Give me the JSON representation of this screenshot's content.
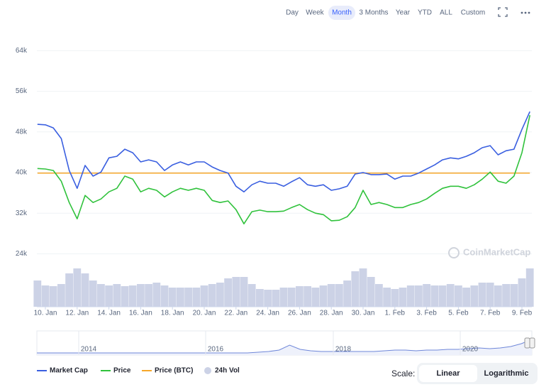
{
  "toolbar": {
    "ranges": [
      "Day",
      "Week",
      "Month",
      "3 Months",
      "Year",
      "YTD",
      "ALL",
      "Custom"
    ],
    "selected": 2
  },
  "chart_data": {
    "type": "line",
    "categories": [
      null,
      "10. Jan",
      null,
      null,
      null,
      "12. Jan",
      null,
      null,
      null,
      "14. Jan",
      null,
      null,
      null,
      "16. Jan",
      null,
      null,
      null,
      "18. Jan",
      null,
      null,
      null,
      "20. Jan",
      null,
      null,
      null,
      "22. Jan",
      null,
      null,
      null,
      "24. Jan",
      null,
      null,
      null,
      "26. Jan",
      null,
      null,
      null,
      "28. Jan",
      null,
      null,
      null,
      "30. Jan",
      null,
      null,
      null,
      "1. Feb",
      null,
      null,
      null,
      "3. Feb",
      null,
      null,
      null,
      "5. Feb",
      null,
      null,
      null,
      "7. Feb",
      null,
      null,
      null,
      "9. Feb",
      null
    ],
    "ylim": [
      20000,
      68000
    ],
    "yticks": [
      {
        "value": 24000,
        "label": "24k"
      },
      {
        "value": 32000,
        "label": "32k"
      },
      {
        "value": 40000,
        "label": "40k"
      },
      {
        "value": 48000,
        "label": "48k"
      },
      {
        "value": 56000,
        "label": "56k"
      },
      {
        "value": 64000,
        "label": "64k"
      }
    ],
    "grid": true,
    "series": [
      {
        "name": "Market Cap",
        "color": "#3a5fe0",
        "values": [
          49500,
          49400,
          48800,
          46700,
          40400,
          36900,
          41400,
          39300,
          40100,
          42900,
          43200,
          44600,
          43900,
          42100,
          42500,
          42100,
          40400,
          41500,
          42100,
          41500,
          42100,
          42100,
          41100,
          40400,
          39900,
          37300,
          36200,
          37600,
          38300,
          37900,
          37900,
          37300,
          38200,
          39000,
          37600,
          37300,
          37600,
          36500,
          36800,
          37300,
          39700,
          40000,
          39600,
          39600,
          39700,
          38700,
          39300,
          39300,
          39900,
          40700,
          41500,
          42500,
          42900,
          42700,
          43200,
          43900,
          44900,
          45300,
          43500,
          44300,
          44600,
          48500,
          52000
        ]
      },
      {
        "name": "Price",
        "color": "#30c23c",
        "values": [
          40800,
          40700,
          40400,
          38300,
          34100,
          30900,
          35500,
          34100,
          34800,
          36200,
          36900,
          39300,
          38700,
          36200,
          36900,
          36500,
          35200,
          36200,
          36900,
          36500,
          36900,
          36500,
          34500,
          34100,
          34400,
          32700,
          29900,
          32300,
          32600,
          32300,
          32300,
          32400,
          33100,
          33700,
          32700,
          32000,
          31700,
          30500,
          30600,
          31300,
          33100,
          36500,
          33700,
          34100,
          33700,
          33100,
          33100,
          33700,
          34100,
          34800,
          35900,
          36900,
          37300,
          37300,
          36900,
          37600,
          38700,
          40100,
          38300,
          37900,
          39300,
          43900,
          51300
        ]
      },
      {
        "name": "Price (BTC)",
        "color": "#f6a72a",
        "values": [
          39900,
          39900,
          39900,
          39900,
          39900,
          39900,
          39900,
          39900,
          39900,
          39900,
          39900,
          39900,
          39900,
          39900,
          39900,
          39900,
          39900,
          39900,
          39900,
          39900,
          39900,
          39900,
          39900,
          39900,
          39900,
          39900,
          39900,
          39900,
          39900,
          39900,
          39900,
          39900,
          39900,
          39900,
          39900,
          39900,
          39900,
          39900,
          39900,
          39900,
          39900,
          39900,
          39900,
          39900,
          39900,
          39900,
          39900,
          39900,
          39900,
          39900,
          39900,
          39900,
          39900,
          39900,
          39900,
          39900,
          39900,
          39900,
          39900,
          39900,
          39900,
          39900,
          39900
        ]
      }
    ],
    "volume": {
      "name": "24h Vol",
      "color": "#ccd2e6",
      "values": [
        37,
        30,
        29,
        32,
        47,
        54,
        47,
        37,
        32,
        30,
        32,
        29,
        30,
        32,
        32,
        34,
        30,
        27,
        27,
        27,
        27,
        30,
        32,
        34,
        40,
        42,
        42,
        32,
        25,
        24,
        24,
        27,
        27,
        29,
        29,
        27,
        30,
        32,
        32,
        37,
        50,
        54,
        42,
        32,
        27,
        25,
        27,
        30,
        30,
        32,
        30,
        30,
        32,
        30,
        27,
        30,
        34,
        34,
        30,
        32,
        32,
        40,
        54
      ]
    },
    "navigator": {
      "labels": [
        "2014",
        "2016",
        "2018",
        "2020"
      ],
      "values": [
        1,
        1,
        1,
        1,
        1,
        1,
        1,
        1,
        1,
        1,
        1,
        1,
        1,
        1,
        1,
        1,
        1,
        1,
        1,
        1,
        1,
        2,
        3,
        5,
        12,
        6,
        4,
        3,
        3,
        3,
        3,
        3,
        3,
        4,
        5,
        5,
        4,
        5,
        5,
        6,
        6,
        7,
        8,
        7,
        8,
        10,
        14,
        20
      ]
    },
    "watermark": "CoinMarketCap",
    "scale": {
      "label": "Scale:",
      "options": [
        "Linear",
        "Logarithmic"
      ],
      "selected": 0
    }
  }
}
